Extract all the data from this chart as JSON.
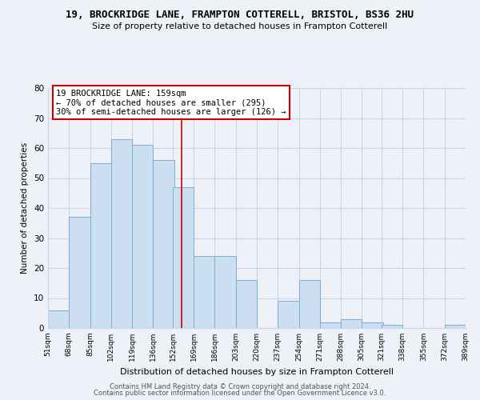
{
  "title": "19, BROCKRIDGE LANE, FRAMPTON COTTERELL, BRISTOL, BS36 2HU",
  "subtitle": "Size of property relative to detached houses in Frampton Cotterell",
  "xlabel": "Distribution of detached houses by size in Frampton Cotterell",
  "ylabel": "Number of detached properties",
  "bins": [
    51,
    68,
    85,
    102,
    119,
    136,
    152,
    169,
    186,
    203,
    220,
    237,
    254,
    271,
    288,
    305,
    321,
    338,
    355,
    372,
    389
  ],
  "counts": [
    6,
    37,
    55,
    63,
    61,
    56,
    47,
    24,
    24,
    16,
    0,
    9,
    16,
    2,
    3,
    2,
    1,
    0,
    0,
    1
  ],
  "bar_color": "#ccdff0",
  "bar_edge_color": "#7aaed6",
  "vline_x": 159,
  "vline_color": "#cc0000",
  "ylim": [
    0,
    80
  ],
  "yticks": [
    0,
    10,
    20,
    30,
    40,
    50,
    60,
    70,
    80
  ],
  "legend_title": "19 BROCKRIDGE LANE: 159sqm",
  "legend_line1": "← 70% of detached houses are smaller (295)",
  "legend_line2": "30% of semi-detached houses are larger (126) →",
  "legend_box_color": "white",
  "legend_box_edge": "#cc0000",
  "bg_color": "#eef2f8",
  "grid_color": "#c8d4e8",
  "footnote1": "Contains HM Land Registry data © Crown copyright and database right 2024.",
  "footnote2": "Contains public sector information licensed under the Open Government Licence v3.0."
}
